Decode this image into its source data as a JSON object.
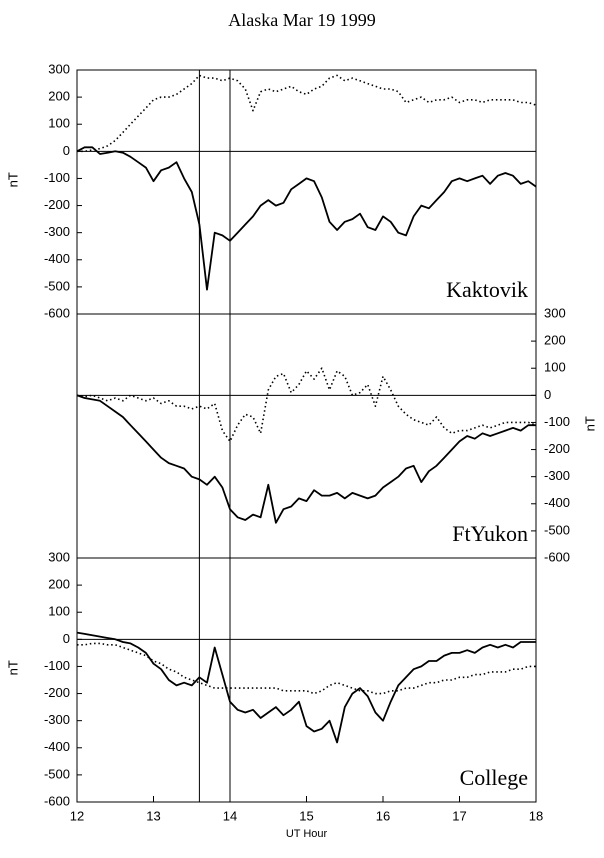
{
  "title": "Alaska Mar 19 1999",
  "markers_x": [
    13.6,
    14.0
  ],
  "chart_data": [
    {
      "type": "line",
      "title": "Kaktovik",
      "ylabel": "nT",
      "yaxis": "left",
      "zero_line": true,
      "xlim": [
        12,
        18
      ],
      "ylim": [
        -600,
        300
      ],
      "yticks": [
        -600,
        -500,
        -400,
        -300,
        -200,
        -100,
        0,
        100,
        200,
        300
      ],
      "x": [
        12.0,
        12.1,
        12.2,
        12.3,
        12.4,
        12.5,
        12.6,
        12.7,
        12.8,
        12.9,
        13.0,
        13.1,
        13.2,
        13.3,
        13.4,
        13.5,
        13.6,
        13.7,
        13.8,
        13.9,
        14.0,
        14.1,
        14.2,
        14.3,
        14.4,
        14.5,
        14.6,
        14.7,
        14.8,
        14.9,
        15.0,
        15.1,
        15.2,
        15.3,
        15.4,
        15.5,
        15.6,
        15.7,
        15.8,
        15.9,
        16.0,
        16.1,
        16.2,
        16.3,
        16.4,
        16.5,
        16.6,
        16.7,
        16.8,
        16.9,
        17.0,
        17.1,
        17.2,
        17.3,
        17.4,
        17.5,
        17.6,
        17.7,
        17.8,
        17.9,
        18.0
      ],
      "series": [
        {
          "color": "#000000",
          "style": "solid",
          "values": [
            0,
            15,
            15,
            -10,
            -5,
            0,
            -5,
            -20,
            -40,
            -60,
            -110,
            -70,
            -60,
            -40,
            -100,
            -150,
            -270,
            -510,
            -300,
            -310,
            -330,
            -300,
            -270,
            -240,
            -200,
            -180,
            -200,
            -190,
            -140,
            -120,
            -100,
            -110,
            -170,
            -260,
            -290,
            -260,
            -250,
            -230,
            -280,
            -290,
            -240,
            -260,
            -300,
            -310,
            -240,
            -200,
            -210,
            -180,
            -150,
            -110,
            -100,
            -110,
            -100,
            -90,
            -120,
            -90,
            -80,
            -90,
            -120,
            -110,
            -130
          ]
        },
        {
          "color": "#000000",
          "style": "dotted",
          "values": [
            0,
            0,
            5,
            10,
            20,
            40,
            70,
            100,
            130,
            160,
            190,
            200,
            200,
            210,
            230,
            250,
            280,
            270,
            270,
            260,
            270,
            260,
            230,
            150,
            220,
            230,
            220,
            230,
            240,
            220,
            210,
            230,
            240,
            270,
            280,
            260,
            270,
            260,
            250,
            240,
            230,
            230,
            220,
            180,
            190,
            200,
            180,
            190,
            190,
            200,
            180,
            190,
            190,
            180,
            190,
            190,
            190,
            190,
            180,
            180,
            170
          ]
        }
      ]
    },
    {
      "type": "line",
      "title": "FtYukon",
      "ylabel": "nT",
      "yaxis": "right",
      "zero_line": true,
      "xlim": [
        12,
        18
      ],
      "ylim": [
        -600,
        300
      ],
      "yticks": [
        -600,
        -500,
        -400,
        -300,
        -200,
        -100,
        0,
        100,
        200,
        300
      ],
      "x": [
        12.0,
        12.1,
        12.2,
        12.3,
        12.4,
        12.5,
        12.6,
        12.7,
        12.8,
        12.9,
        13.0,
        13.1,
        13.2,
        13.3,
        13.4,
        13.5,
        13.6,
        13.7,
        13.8,
        13.9,
        14.0,
        14.1,
        14.2,
        14.3,
        14.4,
        14.5,
        14.6,
        14.7,
        14.8,
        14.9,
        15.0,
        15.1,
        15.2,
        15.3,
        15.4,
        15.5,
        15.6,
        15.7,
        15.8,
        15.9,
        16.0,
        16.1,
        16.2,
        16.3,
        16.4,
        16.5,
        16.6,
        16.7,
        16.8,
        16.9,
        17.0,
        17.1,
        17.2,
        17.3,
        17.4,
        17.5,
        17.6,
        17.7,
        17.8,
        17.9,
        18.0
      ],
      "series": [
        {
          "color": "#000000",
          "style": "solid",
          "values": [
            0,
            -10,
            -15,
            -20,
            -40,
            -60,
            -80,
            -110,
            -140,
            -170,
            -200,
            -230,
            -250,
            -260,
            -270,
            -300,
            -310,
            -330,
            -300,
            -340,
            -420,
            -450,
            -460,
            -440,
            -450,
            -330,
            -470,
            -420,
            -410,
            -380,
            -390,
            -350,
            -370,
            -370,
            -360,
            -380,
            -360,
            -370,
            -380,
            -370,
            -340,
            -320,
            -300,
            -270,
            -260,
            -320,
            -280,
            -260,
            -230,
            -200,
            -170,
            -150,
            -160,
            -140,
            -150,
            -140,
            -130,
            -120,
            -130,
            -110,
            -110
          ]
        },
        {
          "color": "#000000",
          "style": "dotted",
          "values": [
            0,
            -5,
            0,
            -10,
            -20,
            -10,
            -20,
            0,
            -10,
            -20,
            -10,
            -30,
            -20,
            -40,
            -40,
            -50,
            -40,
            -50,
            -30,
            -130,
            -170,
            -110,
            -70,
            -80,
            -140,
            20,
            70,
            80,
            10,
            40,
            90,
            60,
            100,
            20,
            90,
            70,
            0,
            10,
            40,
            -40,
            70,
            20,
            -40,
            -70,
            -90,
            -100,
            -110,
            -80,
            -120,
            -140,
            -130,
            -130,
            -120,
            -110,
            -120,
            -110,
            -100,
            -100,
            -100,
            -100,
            -110
          ]
        }
      ]
    },
    {
      "type": "line",
      "title": "College",
      "ylabel": "nT",
      "yaxis": "left",
      "zero_line": true,
      "xlabel": "UT Hour",
      "xlim": [
        12,
        18
      ],
      "xticks": [
        12,
        13,
        14,
        15,
        16,
        17,
        18
      ],
      "ylim": [
        -600,
        300
      ],
      "yticks": [
        -600,
        -500,
        -400,
        -300,
        -200,
        -100,
        0,
        100,
        200,
        300
      ],
      "x": [
        12.0,
        12.1,
        12.2,
        12.3,
        12.4,
        12.5,
        12.6,
        12.7,
        12.8,
        12.9,
        13.0,
        13.1,
        13.2,
        13.3,
        13.4,
        13.5,
        13.6,
        13.7,
        13.8,
        13.9,
        14.0,
        14.1,
        14.2,
        14.3,
        14.4,
        14.5,
        14.6,
        14.7,
        14.8,
        14.9,
        15.0,
        15.1,
        15.2,
        15.3,
        15.4,
        15.5,
        15.6,
        15.7,
        15.8,
        15.9,
        16.0,
        16.1,
        16.2,
        16.3,
        16.4,
        16.5,
        16.6,
        16.7,
        16.8,
        16.9,
        17.0,
        17.1,
        17.2,
        17.3,
        17.4,
        17.5,
        17.6,
        17.7,
        17.8,
        17.9,
        18.0
      ],
      "series": [
        {
          "color": "#000000",
          "style": "solid",
          "values": [
            25,
            20,
            15,
            10,
            5,
            0,
            -10,
            -15,
            -30,
            -50,
            -90,
            -110,
            -150,
            -170,
            -160,
            -170,
            -140,
            -160,
            -30,
            -130,
            -230,
            -260,
            -270,
            -260,
            -290,
            -270,
            -250,
            -280,
            -260,
            -230,
            -320,
            -340,
            -330,
            -300,
            -380,
            -250,
            -200,
            -180,
            -210,
            -270,
            -300,
            -230,
            -170,
            -140,
            -110,
            -100,
            -80,
            -80,
            -60,
            -50,
            -50,
            -40,
            -50,
            -30,
            -20,
            -30,
            -20,
            -30,
            -10,
            -10,
            -10
          ]
        },
        {
          "color": "#000000",
          "style": "dotted",
          "values": [
            -20,
            -20,
            -15,
            -15,
            -20,
            -20,
            -30,
            -40,
            -50,
            -60,
            -80,
            -90,
            -110,
            -120,
            -140,
            -150,
            -160,
            -170,
            -180,
            -180,
            -180,
            -180,
            -180,
            -180,
            -180,
            -180,
            -180,
            -190,
            -190,
            -190,
            -190,
            -200,
            -190,
            -170,
            -160,
            -170,
            -180,
            -190,
            -190,
            -200,
            -200,
            -190,
            -190,
            -180,
            -180,
            -170,
            -160,
            -160,
            -150,
            -150,
            -140,
            -140,
            -130,
            -130,
            -120,
            -120,
            -120,
            -110,
            -110,
            -100,
            -100
          ]
        }
      ]
    }
  ]
}
